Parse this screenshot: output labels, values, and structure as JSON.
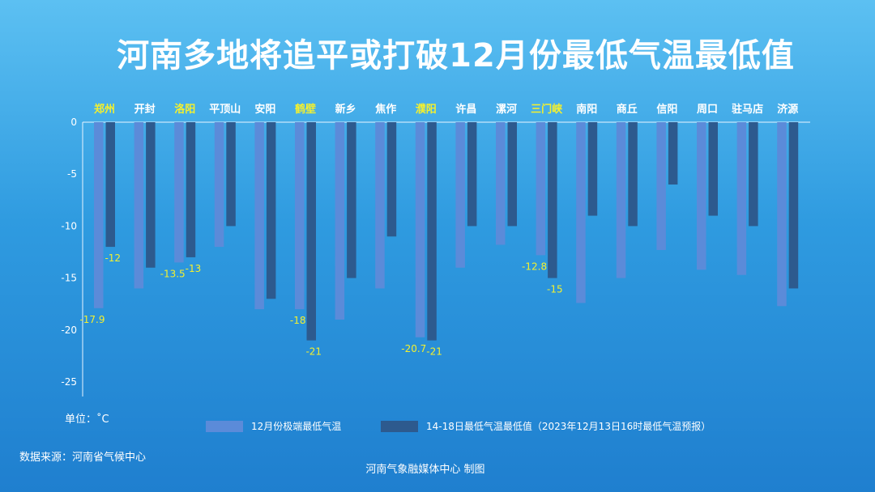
{
  "title": "河南多地将追平或打破12月份最低气温最低值",
  "unit_label": "单位：˚C",
  "source_label": "数据来源：河南省气候中心",
  "credit_label": "河南气象融媒体中心  制图",
  "colors": {
    "series1": "#5b8bd9",
    "series2": "#2d5a8e",
    "highlight": "#f4f02e",
    "label": "#ffffff"
  },
  "chart_data": {
    "type": "bar",
    "title": "河南多地将追平或打破12月份最低气温最低值",
    "ylim": [
      -25,
      0
    ],
    "yticks": [
      0,
      -5,
      -10,
      -15,
      -20,
      -25
    ],
    "categories": [
      "郑州",
      "开封",
      "洛阳",
      "平顶山",
      "安阳",
      "鹤壁",
      "新乡",
      "焦作",
      "濮阳",
      "许昌",
      "漯河",
      "三门峡",
      "南阳",
      "商丘",
      "信阳",
      "周口",
      "驻马店",
      "济源"
    ],
    "highlighted": [
      "郑州",
      "洛阳",
      "鹤壁",
      "濮阳",
      "三门峡"
    ],
    "series": [
      {
        "name": "12月份极端最低气温",
        "values": [
          -17.9,
          -16,
          -13.5,
          -12,
          -18,
          -18,
          -19,
          -16,
          -20.7,
          -14,
          -11.8,
          -12.8,
          -17.4,
          -15,
          -12.3,
          -14.2,
          -14.7,
          -17.7
        ]
      },
      {
        "name": "14-18日最低气温最低值（2023年12月13日16时最低气温预报）",
        "values": [
          -12,
          -14,
          -13,
          -10,
          -17,
          -21,
          -15,
          -11,
          -21,
          -10,
          -10,
          -15,
          -9,
          -10,
          -6,
          -9,
          -10,
          -16
        ]
      }
    ],
    "data_labels": [
      {
        "category": "郑州",
        "series": 0,
        "text": "-17.9"
      },
      {
        "category": "郑州",
        "series": 1,
        "text": "-12"
      },
      {
        "category": "洛阳",
        "series": 0,
        "text": "-13.5"
      },
      {
        "category": "洛阳",
        "series": 1,
        "text": "-13"
      },
      {
        "category": "鹤壁",
        "series": 0,
        "text": "-18"
      },
      {
        "category": "鹤壁",
        "series": 1,
        "text": "-21"
      },
      {
        "category": "濮阳",
        "series": 0,
        "text": "-20.7"
      },
      {
        "category": "濮阳",
        "series": 1,
        "text": "-21"
      },
      {
        "category": "三门峡",
        "series": 0,
        "text": "-12.8"
      },
      {
        "category": "三门峡",
        "series": 1,
        "text": "-15"
      }
    ],
    "legend_position": "bottom",
    "grid": false
  }
}
